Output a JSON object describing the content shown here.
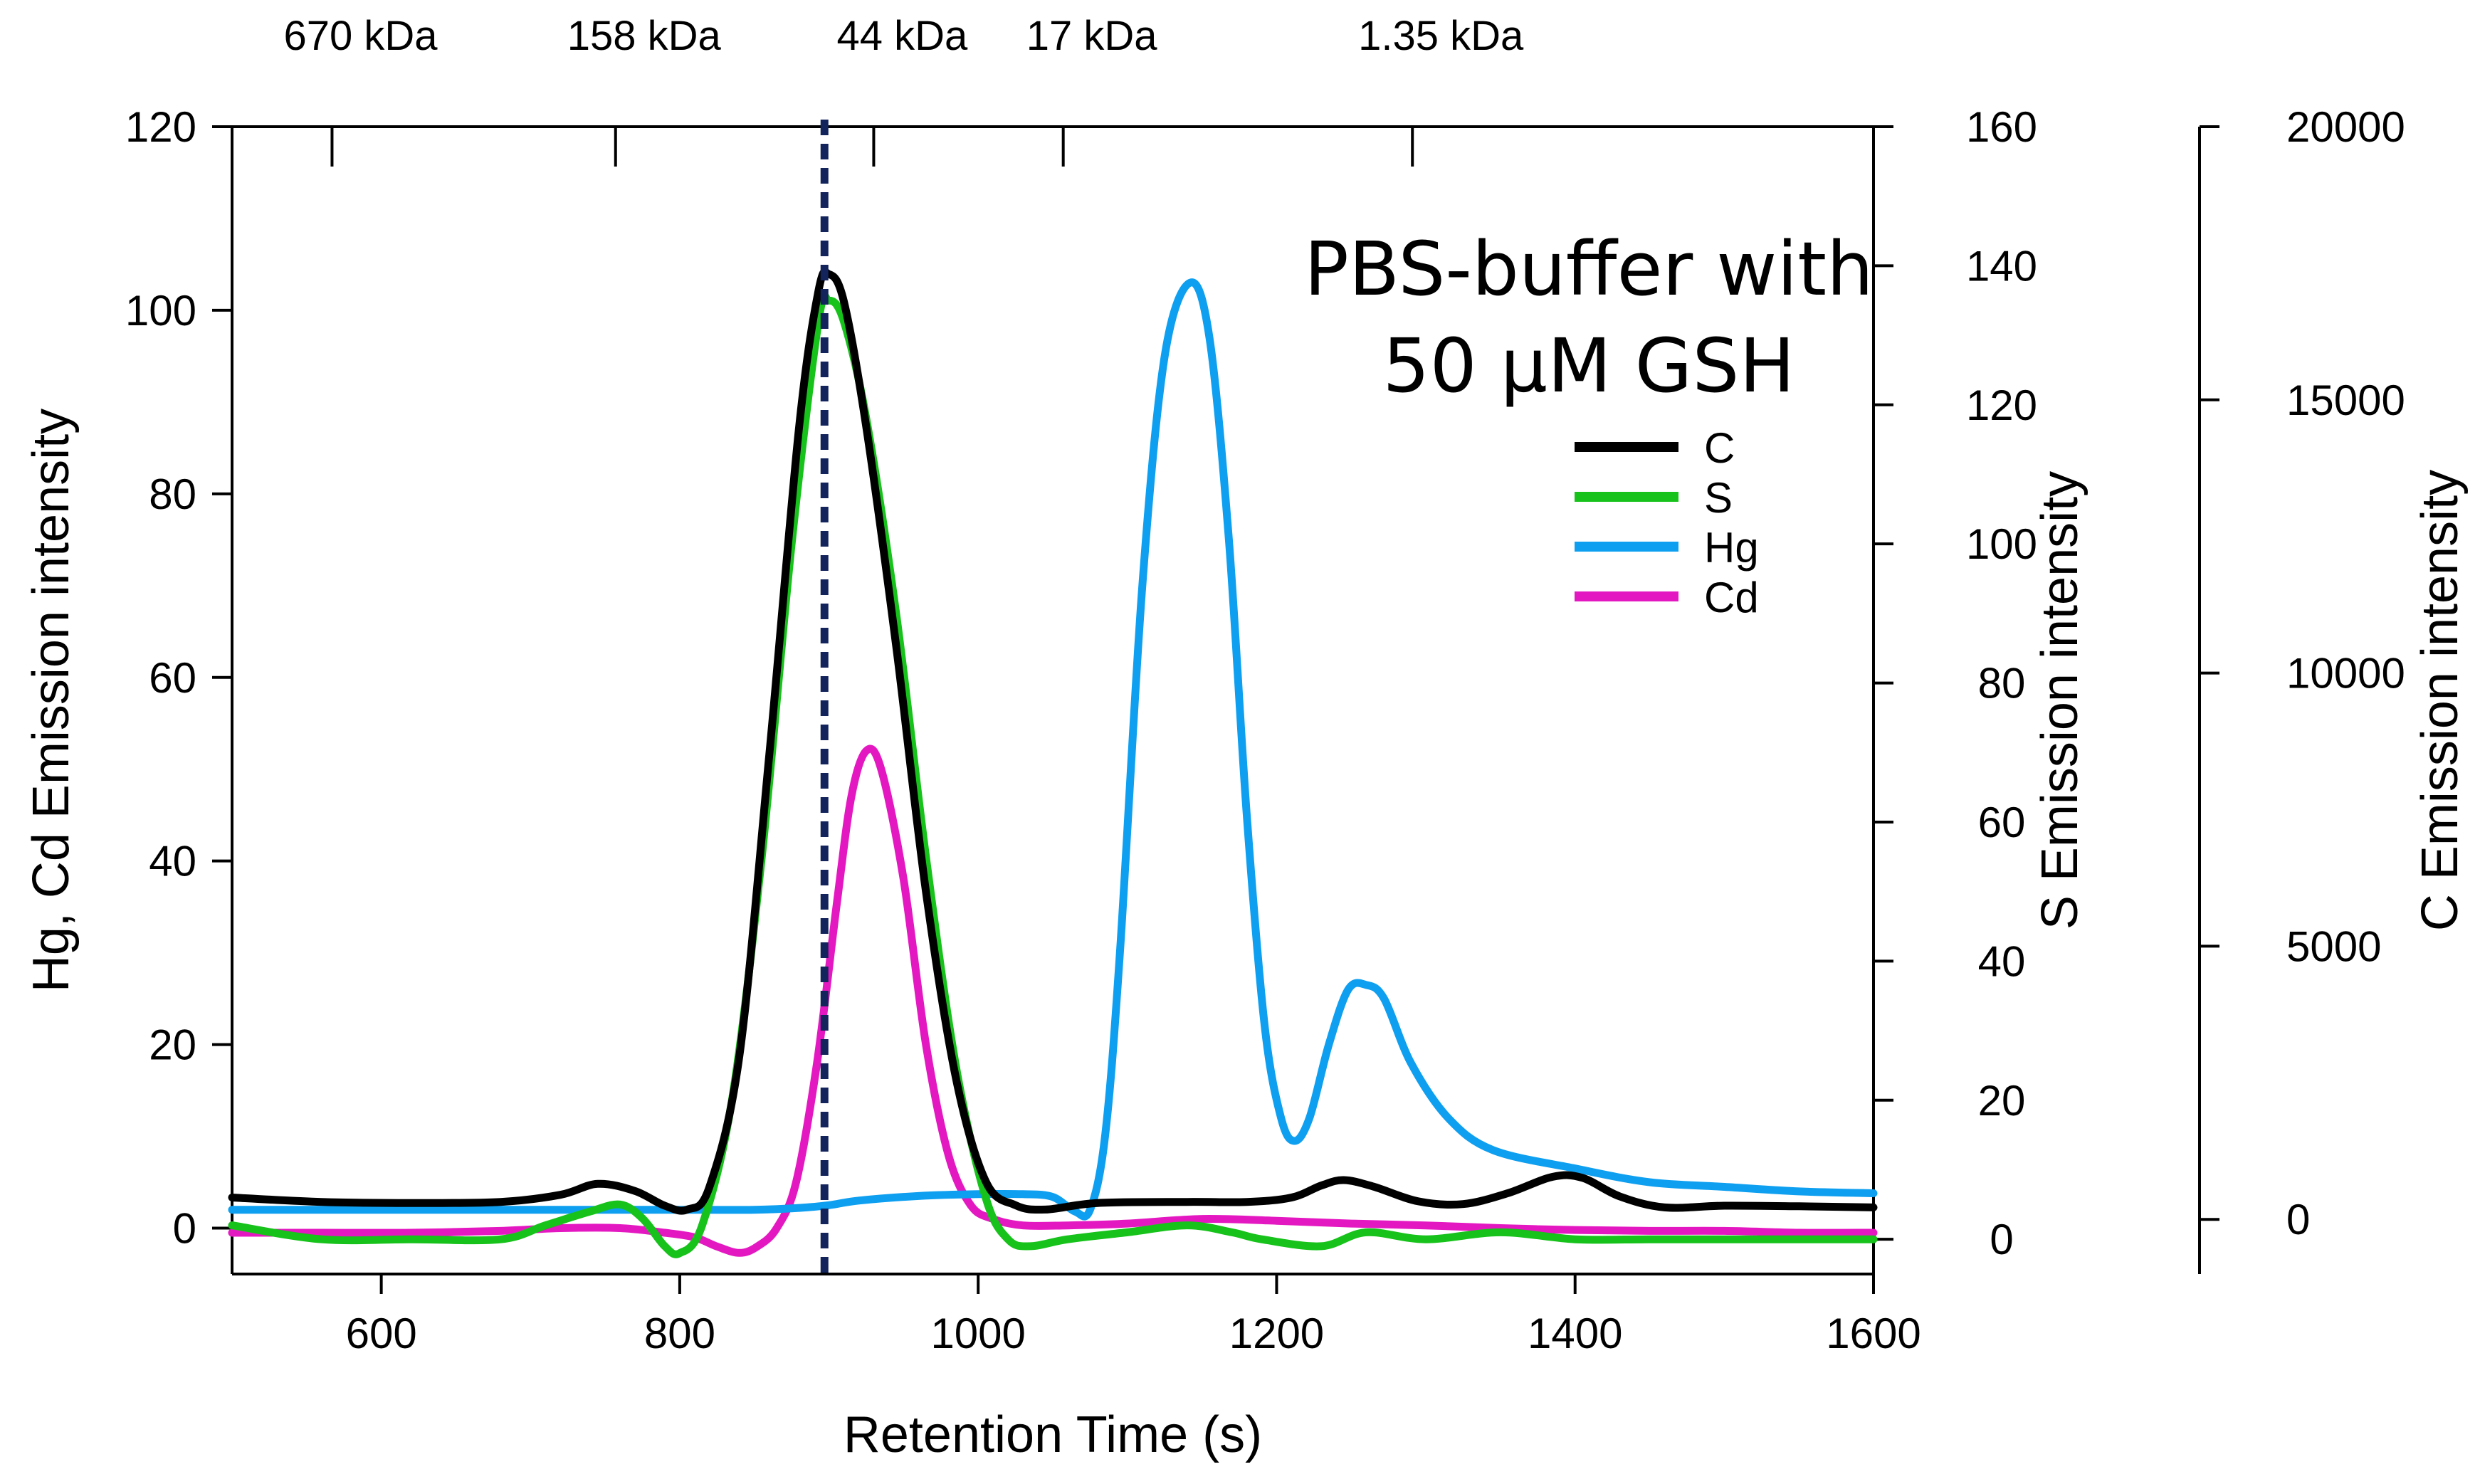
{
  "chart_data": {
    "type": "line",
    "title": "",
    "annotation": [
      "PBS-buffer with",
      "50 µM GSH"
    ],
    "xlabel": "Retention Time (s)",
    "xlim": [
      500,
      1600
    ],
    "xticks": [
      600,
      800,
      1000,
      1200,
      1400,
      1600
    ],
    "left_axis": {
      "label": "Hg, Cd Emission intensity",
      "ylim": [
        -5,
        120
      ],
      "ticks": [
        0,
        20,
        40,
        60,
        80,
        100,
        120
      ]
    },
    "right_axis_s": {
      "label": "S Emission intensity",
      "ylim": [
        -5,
        160
      ],
      "ticks": [
        0,
        20,
        40,
        60,
        80,
        100,
        120,
        140,
        160
      ]
    },
    "right_axis_c": {
      "label": "C Emission intensity",
      "ylim": [
        -1000,
        20000
      ],
      "ticks": [
        0,
        5000,
        10000,
        15000,
        20000
      ]
    },
    "top_axis": {
      "markers": [
        {
          "time": 567,
          "label": "670 kDa"
        },
        {
          "time": 757,
          "label": "158 kDa"
        },
        {
          "time": 930,
          "label": "44 kDa"
        },
        {
          "time": 1057,
          "label": "17 kDa"
        },
        {
          "time": 1291,
          "label": "1.35 kDa"
        }
      ]
    },
    "reference_line": {
      "time": 897,
      "color": "#13235b",
      "style": "dashed"
    },
    "legend": {
      "placement": "upper-right",
      "entries": [
        "C",
        "S",
        "Hg",
        "Cd"
      ]
    },
    "series": [
      {
        "name": "C",
        "color": "#000000",
        "axis": "C",
        "points": [
          [
            500,
            400
          ],
          [
            560,
            320
          ],
          [
            620,
            300
          ],
          [
            680,
            320
          ],
          [
            720,
            450
          ],
          [
            745,
            650
          ],
          [
            770,
            520
          ],
          [
            790,
            250
          ],
          [
            805,
            180
          ],
          [
            820,
            600
          ],
          [
            840,
            3000
          ],
          [
            860,
            8500
          ],
          [
            880,
            14500
          ],
          [
            893,
            17000
          ],
          [
            900,
            17300
          ],
          [
            910,
            16800
          ],
          [
            925,
            14500
          ],
          [
            945,
            10500
          ],
          [
            965,
            6000
          ],
          [
            985,
            2600
          ],
          [
            1005,
            700
          ],
          [
            1025,
            260
          ],
          [
            1045,
            180
          ],
          [
            1080,
            300
          ],
          [
            1140,
            320
          ],
          [
            1180,
            320
          ],
          [
            1210,
            400
          ],
          [
            1230,
            620
          ],
          [
            1245,
            720
          ],
          [
            1265,
            600
          ],
          [
            1295,
            330
          ],
          [
            1325,
            280
          ],
          [
            1355,
            480
          ],
          [
            1385,
            780
          ],
          [
            1405,
            760
          ],
          [
            1430,
            420
          ],
          [
            1460,
            220
          ],
          [
            1500,
            250
          ],
          [
            1550,
            240
          ],
          [
            1600,
            220
          ]
        ]
      },
      {
        "name": "S",
        "color": "#17c21b",
        "axis": "S",
        "points": [
          [
            500,
            2
          ],
          [
            560,
            0
          ],
          [
            620,
            0
          ],
          [
            680,
            0
          ],
          [
            710,
            2
          ],
          [
            740,
            4
          ],
          [
            760,
            5
          ],
          [
            775,
            3
          ],
          [
            790,
            -1
          ],
          [
            800,
            -2
          ],
          [
            815,
            2
          ],
          [
            835,
            20
          ],
          [
            855,
            55
          ],
          [
            875,
            100
          ],
          [
            893,
            132
          ],
          [
            900,
            135
          ],
          [
            910,
            132
          ],
          [
            925,
            118
          ],
          [
            945,
            90
          ],
          [
            965,
            55
          ],
          [
            985,
            25
          ],
          [
            1005,
            6
          ],
          [
            1020,
            0
          ],
          [
            1035,
            -1
          ],
          [
            1060,
            0
          ],
          [
            1100,
            1
          ],
          [
            1140,
            2
          ],
          [
            1170,
            1
          ],
          [
            1190,
            0
          ],
          [
            1230,
            -1
          ],
          [
            1260,
            1
          ],
          [
            1300,
            0
          ],
          [
            1350,
            1
          ],
          [
            1400,
            0
          ],
          [
            1450,
            0
          ],
          [
            1500,
            0
          ],
          [
            1550,
            0
          ],
          [
            1600,
            0
          ]
        ]
      },
      {
        "name": "Hg",
        "color": "#0e9ff0",
        "axis": "left",
        "points": [
          [
            500,
            2
          ],
          [
            550,
            2
          ],
          [
            600,
            2
          ],
          [
            650,
            2
          ],
          [
            700,
            2
          ],
          [
            750,
            2
          ],
          [
            800,
            2
          ],
          [
            850,
            2
          ],
          [
            880,
            2.2
          ],
          [
            900,
            2.5
          ],
          [
            920,
            3
          ],
          [
            960,
            3.5
          ],
          [
            1000,
            3.7
          ],
          [
            1030,
            3.7
          ],
          [
            1050,
            3.4
          ],
          [
            1065,
            1.8
          ],
          [
            1075,
            2
          ],
          [
            1085,
            10
          ],
          [
            1095,
            30
          ],
          [
            1110,
            70
          ],
          [
            1125,
            95
          ],
          [
            1142,
            103
          ],
          [
            1155,
            97
          ],
          [
            1168,
            75
          ],
          [
            1180,
            45
          ],
          [
            1192,
            22
          ],
          [
            1203,
            12
          ],
          [
            1212,
            9.5
          ],
          [
            1222,
            12
          ],
          [
            1235,
            20
          ],
          [
            1248,
            26
          ],
          [
            1260,
            26.5
          ],
          [
            1272,
            25
          ],
          [
            1290,
            18
          ],
          [
            1315,
            12
          ],
          [
            1345,
            8.5
          ],
          [
            1400,
            6.5
          ],
          [
            1450,
            5
          ],
          [
            1500,
            4.5
          ],
          [
            1550,
            4
          ],
          [
            1600,
            3.8
          ]
        ]
      },
      {
        "name": "Cd",
        "color": "#e418c1",
        "axis": "left",
        "points": [
          [
            500,
            -0.5
          ],
          [
            560,
            -0.5
          ],
          [
            620,
            -0.5
          ],
          [
            680,
            -0.3
          ],
          [
            720,
            0
          ],
          [
            760,
            0
          ],
          [
            790,
            -0.5
          ],
          [
            810,
            -1
          ],
          [
            825,
            -2
          ],
          [
            840,
            -2.7
          ],
          [
            852,
            -2
          ],
          [
            865,
            0
          ],
          [
            878,
            5
          ],
          [
            892,
            18
          ],
          [
            905,
            35
          ],
          [
            915,
            47
          ],
          [
            925,
            52
          ],
          [
            935,
            50
          ],
          [
            950,
            38
          ],
          [
            965,
            20
          ],
          [
            980,
            8
          ],
          [
            995,
            2.5
          ],
          [
            1010,
            1
          ],
          [
            1030,
            0.3
          ],
          [
            1060,
            0.3
          ],
          [
            1100,
            0.5
          ],
          [
            1150,
            1
          ],
          [
            1200,
            0.8
          ],
          [
            1250,
            0.5
          ],
          [
            1300,
            0.3
          ],
          [
            1350,
            0
          ],
          [
            1400,
            -0.2
          ],
          [
            1450,
            -0.3
          ],
          [
            1500,
            -0.3
          ],
          [
            1550,
            -0.5
          ],
          [
            1600,
            -0.5
          ]
        ]
      }
    ]
  }
}
